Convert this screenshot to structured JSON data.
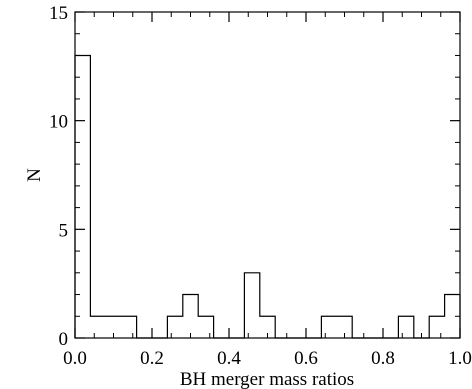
{
  "chart_data": {
    "type": "bar",
    "histogram": true,
    "bin_width": 0.04,
    "bin_edges_start": 0.0,
    "values": [
      13,
      1,
      1,
      1,
      0,
      0,
      1,
      2,
      1,
      0,
      0,
      3,
      1,
      0,
      0,
      0,
      1,
      1,
      0,
      0,
      0,
      1,
      0,
      1,
      2
    ],
    "xlabel": "BH merger mass ratios",
    "ylabel": "N",
    "xlim": [
      0.0,
      1.0
    ],
    "ylim": [
      0,
      15
    ],
    "xticks": [
      {
        "value": 0.0,
        "label": "0.0"
      },
      {
        "value": 0.2,
        "label": "0.2"
      },
      {
        "value": 0.4,
        "label": "0.4"
      },
      {
        "value": 0.6,
        "label": "0.6"
      },
      {
        "value": 0.8,
        "label": "0.8"
      },
      {
        "value": 1.0,
        "label": "1.0"
      }
    ],
    "yticks": [
      {
        "value": 0,
        "label": "0"
      },
      {
        "value": 5,
        "label": "5"
      },
      {
        "value": 10,
        "label": "10"
      },
      {
        "value": 15,
        "label": "15"
      }
    ],
    "grid": false,
    "legend": false,
    "style": "outline-step",
    "color": "#000000"
  }
}
